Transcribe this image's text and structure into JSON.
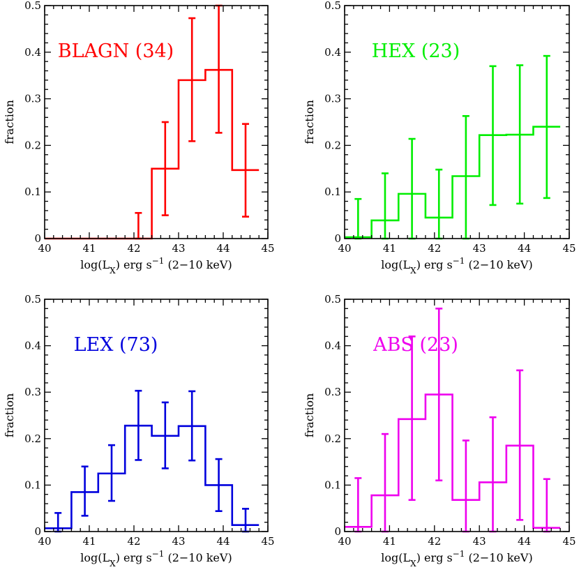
{
  "chart_data": [
    {
      "type": "histogram",
      "title": "BLAGN (34)",
      "color": "#ff0000",
      "xlabel": "log(L_X) erg s^-1 (2-10 keV)",
      "ylabel": "fraction",
      "xlim": [
        40,
        45
      ],
      "ylim": [
        0,
        0.5
      ],
      "xticks": [
        "40",
        "41",
        "42",
        "43",
        "44",
        "45"
      ],
      "yticks": [
        "0",
        "0.1",
        "0.2",
        "0.3",
        "0.4",
        "0.5"
      ],
      "bin_edges": [
        40.0,
        40.6,
        41.2,
        41.8,
        42.4,
        43.0,
        43.6,
        44.2,
        44.8
      ],
      "values": [
        0,
        0,
        0,
        0,
        0.15,
        0.34,
        0.362,
        0.147
      ],
      "errorbars": [
        {
          "x": 42.1,
          "low": 0,
          "high": 0.055
        },
        {
          "x": 42.7,
          "low": 0.05,
          "high": 0.25
        },
        {
          "x": 43.3,
          "low": 0.209,
          "high": 0.473
        },
        {
          "x": 43.9,
          "low": 0.227,
          "high": 0.5
        },
        {
          "x": 44.5,
          "low": 0.047,
          "high": 0.246
        }
      ]
    },
    {
      "type": "histogram",
      "title": "HEX (23)",
      "color": "#00ee00",
      "xlabel": "log(L_X) erg s^-1 (2-10 keV)",
      "ylabel": "fraction",
      "xlim": [
        40,
        45
      ],
      "ylim": [
        0,
        0.5
      ],
      "xticks": [
        "40",
        "41",
        "42",
        "43",
        "44",
        "45"
      ],
      "yticks": [
        "0",
        "0.1",
        "0.2",
        "0.3",
        "0.4",
        "0.5"
      ],
      "bin_edges": [
        40.0,
        40.6,
        41.2,
        41.8,
        42.4,
        43.0,
        43.6,
        44.2,
        44.8
      ],
      "values": [
        0.003,
        0.039,
        0.096,
        0.045,
        0.134,
        0.222,
        0.223,
        0.24
      ],
      "errorbars": [
        {
          "x": 40.3,
          "low": 0,
          "high": 0.085
        },
        {
          "x": 40.9,
          "low": 0,
          "high": 0.14
        },
        {
          "x": 41.5,
          "low": 0,
          "high": 0.214
        },
        {
          "x": 42.1,
          "low": 0,
          "high": 0.148
        },
        {
          "x": 42.7,
          "low": 0,
          "high": 0.263
        },
        {
          "x": 43.3,
          "low": 0.072,
          "high": 0.37
        },
        {
          "x": 43.9,
          "low": 0.075,
          "high": 0.372
        },
        {
          "x": 44.5,
          "low": 0.087,
          "high": 0.392
        }
      ]
    },
    {
      "type": "histogram",
      "title": "LEX (73)",
      "color": "#0000dd",
      "xlabel": "log(L_X) erg s^-1 (2-10 keV)",
      "ylabel": "fraction",
      "xlim": [
        40,
        45
      ],
      "ylim": [
        0,
        0.5
      ],
      "xticks": [
        "40",
        "41",
        "42",
        "43",
        "44",
        "45"
      ],
      "yticks": [
        "0",
        "0.1",
        "0.2",
        "0.3",
        "0.4",
        "0.5"
      ],
      "bin_edges": [
        40.0,
        40.6,
        41.2,
        41.8,
        42.4,
        43.0,
        43.6,
        44.2,
        44.8
      ],
      "values": [
        0.007,
        0.085,
        0.125,
        0.228,
        0.206,
        0.227,
        0.1,
        0.014
      ],
      "errorbars": [
        {
          "x": 40.3,
          "low": 0,
          "high": 0.04
        },
        {
          "x": 40.9,
          "low": 0.034,
          "high": 0.14
        },
        {
          "x": 41.5,
          "low": 0.066,
          "high": 0.186
        },
        {
          "x": 42.1,
          "low": 0.154,
          "high": 0.303
        },
        {
          "x": 42.7,
          "low": 0.136,
          "high": 0.278
        },
        {
          "x": 43.3,
          "low": 0.153,
          "high": 0.302
        },
        {
          "x": 43.9,
          "low": 0.044,
          "high": 0.156
        },
        {
          "x": 44.5,
          "low": 0,
          "high": 0.049
        }
      ]
    },
    {
      "type": "histogram",
      "title": "ABS (23)",
      "color": "#ee00ee",
      "xlabel": "log(L_X) erg s^-1 (2-10 keV)",
      "ylabel": "fraction",
      "xlim": [
        40,
        45
      ],
      "ylim": [
        0,
        0.5
      ],
      "xticks": [
        "40",
        "41",
        "42",
        "43",
        "44",
        "45"
      ],
      "yticks": [
        "0",
        "0.1",
        "0.2",
        "0.3",
        "0.4",
        "0.5"
      ],
      "bin_edges": [
        40.0,
        40.6,
        41.2,
        41.8,
        42.4,
        43.0,
        43.6,
        44.2,
        44.8
      ],
      "values": [
        0.01,
        0.078,
        0.242,
        0.295,
        0.068,
        0.106,
        0.185,
        0.008
      ],
      "errorbars": [
        {
          "x": 40.3,
          "low": 0,
          "high": 0.115
        },
        {
          "x": 40.9,
          "low": 0,
          "high": 0.21
        },
        {
          "x": 41.5,
          "low": 0.068,
          "high": 0.42
        },
        {
          "x": 42.1,
          "low": 0.11,
          "high": 0.48
        },
        {
          "x": 42.7,
          "low": 0,
          "high": 0.196
        },
        {
          "x": 43.3,
          "low": 0,
          "high": 0.246
        },
        {
          "x": 43.9,
          "low": 0.025,
          "high": 0.347
        },
        {
          "x": 44.5,
          "low": 0,
          "high": 0.113
        }
      ]
    }
  ]
}
